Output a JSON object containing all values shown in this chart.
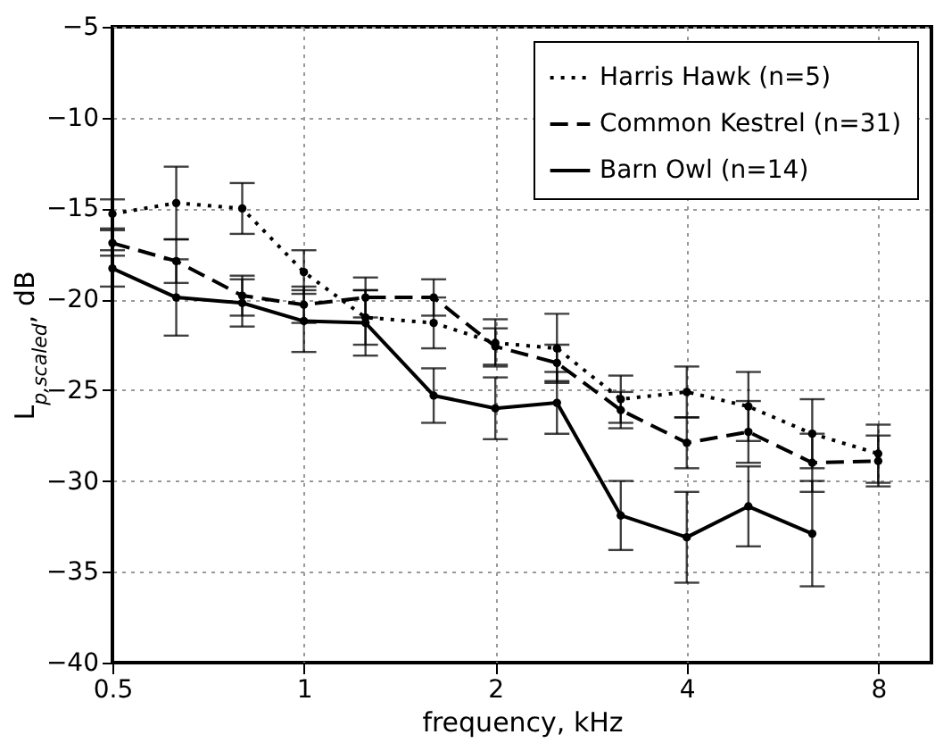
{
  "chart_data": {
    "type": "line",
    "xlabel": "frequency, kHz",
    "ylabel": "L$_{p,scaled}$, dB",
    "x": [
      0.5,
      0.63,
      0.8,
      1,
      1.25,
      1.6,
      2,
      2.5,
      3.15,
      4,
      5,
      6.3,
      8
    ],
    "series": [
      {
        "name": "Harris Hawk (n=5)",
        "color": "#000000",
        "line_style": "dotted",
        "values": [
          -15.3,
          -14.7,
          -15.0,
          -18.5,
          -21.0,
          -21.3,
          -22.4,
          -22.7,
          -25.5,
          -25.1,
          -25.9,
          -27.4,
          -28.5
        ],
        "errors": [
          0.8,
          2.0,
          1.4,
          1.2,
          1.5,
          1.4,
          1.3,
          1.9,
          1.3,
          1.4,
          1.9,
          1.9,
          1.6
        ]
      },
      {
        "name": "Common Kestrel (n=31)",
        "color": "#000000",
        "line_style": "dashed",
        "values": [
          -16.9,
          -17.9,
          -19.8,
          -20.3,
          -19.9,
          -19.9,
          -22.6,
          -23.5,
          -26.1,
          -27.9,
          -27.3,
          -29.0,
          -28.9
        ],
        "errors": [
          0.7,
          1.2,
          1.1,
          1.0,
          1.1,
          1.0,
          1.0,
          1.0,
          1.0,
          1.4,
          1.7,
          1.6,
          1.4
        ]
      },
      {
        "name": "Barn Owl (n=14)",
        "color": "#000000",
        "line_style": "solid",
        "values": [
          -18.3,
          -19.9,
          -20.2,
          -21.2,
          -21.3,
          -25.3,
          -26.0,
          -25.7,
          -31.9,
          -33.1,
          -31.4,
          -32.9,
          null
        ],
        "errors": [
          1.0,
          2.1,
          1.3,
          1.7,
          1.8,
          1.5,
          1.7,
          1.7,
          1.9,
          2.5,
          2.2,
          2.9,
          null
        ]
      }
    ],
    "xlim": [
      0.5,
      9.7
    ],
    "xticks": [
      0.5,
      1,
      2,
      4,
      8
    ],
    "ylim": [
      -40,
      -5
    ],
    "yticks": [
      -40,
      -35,
      -30,
      -25,
      -20,
      -15,
      -10,
      -5
    ],
    "log": "x",
    "grid": true,
    "legend": "top right",
    "marker": "circle"
  }
}
